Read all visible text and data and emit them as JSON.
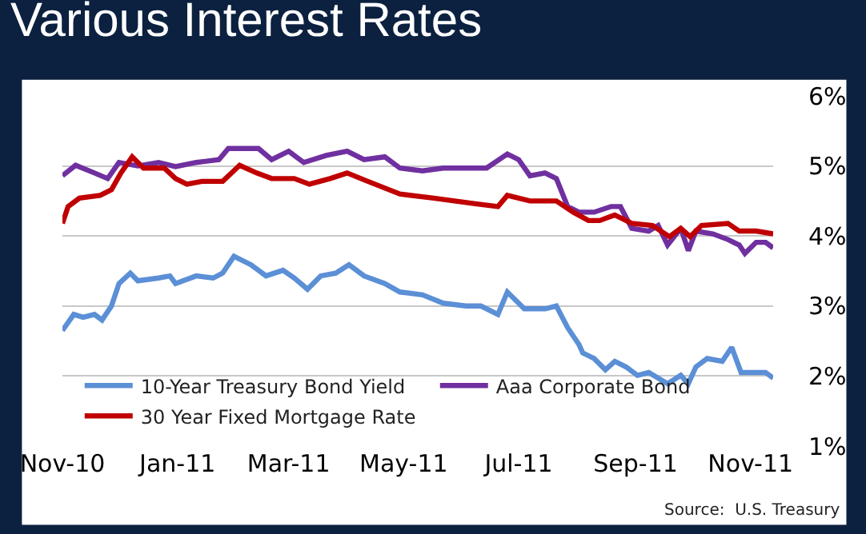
{
  "chart_data": {
    "type": "line",
    "title": "Various Interest Rates",
    "xlim": [
      "2010-11-01",
      "2011-11-13"
    ],
    "xticks": [
      {
        "value": "2010-11-01",
        "label": "Nov-10"
      },
      {
        "value": "2011-01-01",
        "label": "Jan-11"
      },
      {
        "value": "2011-03-01",
        "label": "Mar-11"
      },
      {
        "value": "2011-05-01",
        "label": "May-11"
      },
      {
        "value": "2011-07-01",
        "label": "Jul-11"
      },
      {
        "value": "2011-09-01",
        "label": "Sep-11"
      },
      {
        "value": "2011-11-01",
        "label": "Nov-11"
      }
    ],
    "ylim": [
      1,
      6
    ],
    "yticks": [
      {
        "value": 1,
        "label": "1%"
      },
      {
        "value": 2,
        "label": "2%"
      },
      {
        "value": 3,
        "label": "3%"
      },
      {
        "value": 4,
        "label": "4%"
      },
      {
        "value": 5,
        "label": "5%"
      },
      {
        "value": 6,
        "label": "6%"
      }
    ],
    "grid": "y",
    "legend": "bottom left",
    "marker": "none",
    "line_style": "solid",
    "annotations": [
      "Source:  U.S. Treasury"
    ],
    "series": [
      {
        "name": "10-Year Treasury Bond Yield",
        "color": "#5b8fd6",
        "x": [
          "2010-11-01",
          "2010-11-07",
          "2010-11-12",
          "2010-11-18",
          "2010-11-22",
          "2010-11-27",
          "2010-12-01",
          "2010-12-07",
          "2010-12-11",
          "2010-12-22",
          "2010-12-28",
          "2010-12-31",
          "2011-01-11",
          "2011-01-20",
          "2011-01-25",
          "2011-01-31",
          "2011-02-09",
          "2011-02-17",
          "2011-02-26",
          "2011-03-04",
          "2011-03-11",
          "2011-03-18",
          "2011-03-26",
          "2011-04-02",
          "2011-04-10",
          "2011-04-21",
          "2011-04-29",
          "2011-05-11",
          "2011-05-22",
          "2011-06-03",
          "2011-06-11",
          "2011-06-20",
          "2011-06-25",
          "2011-07-04",
          "2011-07-15",
          "2011-07-21",
          "2011-07-27",
          "2011-08-02",
          "2011-08-04",
          "2011-08-10",
          "2011-08-16",
          "2011-08-21",
          "2011-08-27",
          "2011-09-02",
          "2011-09-08",
          "2011-09-13",
          "2011-09-18",
          "2011-09-25",
          "2011-09-29",
          "2011-10-03",
          "2011-10-09",
          "2011-10-17",
          "2011-10-22",
          "2011-10-27",
          "2011-11-04",
          "2011-11-09",
          "2011-11-13"
        ],
        "values": [
          2.65,
          2.88,
          2.84,
          2.88,
          2.8,
          3.0,
          3.32,
          3.47,
          3.36,
          3.4,
          3.43,
          3.32,
          3.43,
          3.4,
          3.47,
          3.71,
          3.59,
          3.43,
          3.51,
          3.4,
          3.24,
          3.43,
          3.47,
          3.59,
          3.43,
          3.32,
          3.2,
          3.16,
          3.04,
          3.0,
          3.0,
          2.88,
          3.2,
          2.96,
          2.96,
          3.0,
          2.69,
          2.45,
          2.33,
          2.25,
          2.09,
          2.21,
          2.13,
          2.01,
          2.05,
          1.97,
          1.89,
          2.01,
          1.89,
          2.13,
          2.25,
          2.21,
          2.41,
          2.05,
          2.05,
          2.05,
          1.97
        ]
      },
      {
        "name": "Aaa Corporate Bond",
        "color": "#7030a0",
        "x": [
          "2010-11-01",
          "2010-11-08",
          "2010-11-18",
          "2010-11-25",
          "2010-12-01",
          "2010-12-11",
          "2010-12-22",
          "2010-12-31",
          "2011-01-11",
          "2011-01-23",
          "2011-01-28",
          "2011-02-06",
          "2011-02-13",
          "2011-02-20",
          "2011-03-01",
          "2011-03-09",
          "2011-03-21",
          "2011-04-01",
          "2011-04-10",
          "2011-04-21",
          "2011-04-29",
          "2011-05-11",
          "2011-05-22",
          "2011-06-03",
          "2011-06-14",
          "2011-06-25",
          "2011-07-01",
          "2011-07-07",
          "2011-07-15",
          "2011-07-21",
          "2011-07-27",
          "2011-08-02",
          "2011-08-10",
          "2011-08-19",
          "2011-08-24",
          "2011-08-30",
          "2011-09-08",
          "2011-09-13",
          "2011-09-18",
          "2011-09-25",
          "2011-09-29",
          "2011-10-03",
          "2011-10-12",
          "2011-10-20",
          "2011-10-26",
          "2011-10-29",
          "2011-11-04",
          "2011-11-09",
          "2011-11-13"
        ],
        "values": [
          4.86,
          5.01,
          4.9,
          4.82,
          5.05,
          5.0,
          5.05,
          4.99,
          5.05,
          5.09,
          5.25,
          5.25,
          5.25,
          5.09,
          5.21,
          5.05,
          5.15,
          5.21,
          5.09,
          5.13,
          4.97,
          4.93,
          4.97,
          4.97,
          4.97,
          5.17,
          5.09,
          4.86,
          4.9,
          4.82,
          4.42,
          4.34,
          4.34,
          4.42,
          4.42,
          4.11,
          4.07,
          4.15,
          3.87,
          4.11,
          3.79,
          4.07,
          4.03,
          3.95,
          3.87,
          3.75,
          3.91,
          3.91,
          3.83
        ]
      },
      {
        "name": "30 Year Fixed Mortgage Rate",
        "color": "#c00000",
        "x": [
          "2010-11-01",
          "2010-11-04",
          "2010-11-10",
          "2010-11-21",
          "2010-11-27",
          "2010-12-02",
          "2010-12-08",
          "2010-12-14",
          "2010-12-25",
          "2010-12-31",
          "2011-01-06",
          "2011-01-14",
          "2011-01-25",
          "2011-02-03",
          "2011-02-12",
          "2011-02-20",
          "2011-03-04",
          "2011-03-12",
          "2011-03-23",
          "2011-04-01",
          "2011-04-12",
          "2011-04-29",
          "2011-05-17",
          "2011-05-28",
          "2011-06-08",
          "2011-06-20",
          "2011-06-25",
          "2011-07-07",
          "2011-07-21",
          "2011-07-30",
          "2011-08-07",
          "2011-08-13",
          "2011-08-21",
          "2011-08-30",
          "2011-09-10",
          "2011-09-19",
          "2011-09-25",
          "2011-09-30",
          "2011-10-06",
          "2011-10-20",
          "2011-10-26",
          "2011-11-04",
          "2011-11-13"
        ],
        "values": [
          4.18,
          4.42,
          4.54,
          4.58,
          4.66,
          4.9,
          5.13,
          4.97,
          4.97,
          4.82,
          4.74,
          4.78,
          4.78,
          5.01,
          4.9,
          4.82,
          4.82,
          4.74,
          4.82,
          4.9,
          4.78,
          4.6,
          4.54,
          4.5,
          4.46,
          4.42,
          4.58,
          4.5,
          4.5,
          4.34,
          4.22,
          4.22,
          4.3,
          4.18,
          4.15,
          3.99,
          4.11,
          3.99,
          4.15,
          4.18,
          4.07,
          4.07,
          4.03
        ]
      }
    ]
  }
}
